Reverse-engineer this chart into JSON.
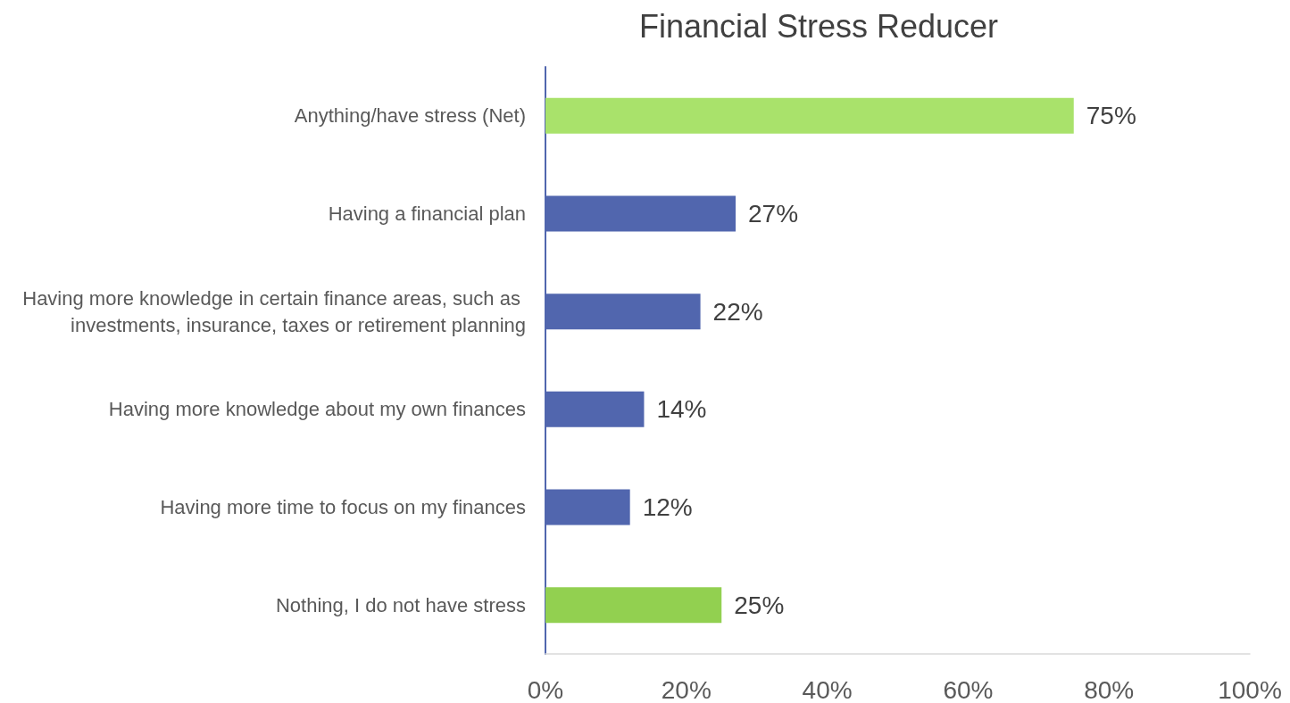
{
  "chart_data": {
    "type": "bar",
    "orientation": "horizontal",
    "title": "Financial Stress Reducer",
    "categories": [
      "Anything/have stress (Net)",
      "Having a financial plan",
      "Having more knowledge in certain finance areas, such as investments, insurance, taxes or retirement planning",
      "Having more knowledge about my own finances",
      "Having more time to focus on my finances",
      "Nothing, I do not have stress"
    ],
    "values": [
      75,
      27,
      22,
      14,
      12,
      25
    ],
    "value_labels": [
      "75%",
      "27%",
      "22%",
      "14%",
      "12%",
      "25%"
    ],
    "colors": [
      "#a9e26b",
      "#5166ae",
      "#5166ae",
      "#5166ae",
      "#5166ae",
      "#92d050"
    ],
    "xlim": [
      0,
      100
    ],
    "xticks": [
      {
        "value": 0,
        "label": "0%"
      },
      {
        "value": 20,
        "label": "20%"
      },
      {
        "value": 40,
        "label": "40%"
      },
      {
        "value": 60,
        "label": "60%"
      },
      {
        "value": 80,
        "label": "80%"
      },
      {
        "value": 100,
        "label": "100%"
      }
    ],
    "grid": false
  }
}
